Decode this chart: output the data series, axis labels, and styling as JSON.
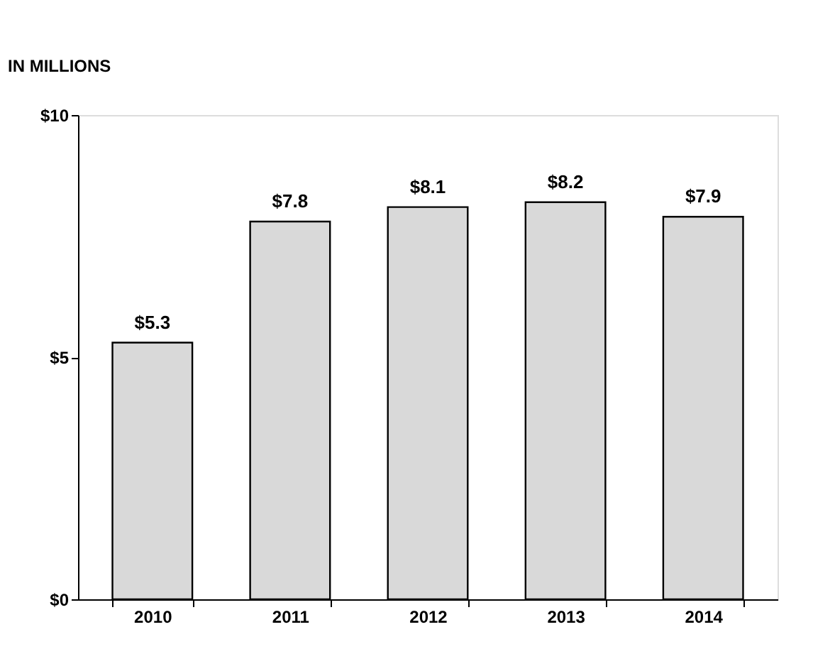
{
  "chart_data": {
    "type": "bar",
    "ylabel": "IN MILLIONS",
    "categories": [
      "2010",
      "2011",
      "2012",
      "2013",
      "2014"
    ],
    "values": [
      5.3,
      7.8,
      8.1,
      8.2,
      7.9
    ],
    "value_labels": [
      "$5.3",
      "$7.8",
      "$8.1",
      "$8.2",
      "$7.9"
    ],
    "color": "#d9d9d9",
    "ylim": [
      0,
      10
    ],
    "yticks": [
      {
        "value": 0,
        "label": "$0"
      },
      {
        "value": 5,
        "label": "$5"
      },
      {
        "value": 10,
        "label": "$10"
      }
    ],
    "grid": false
  }
}
